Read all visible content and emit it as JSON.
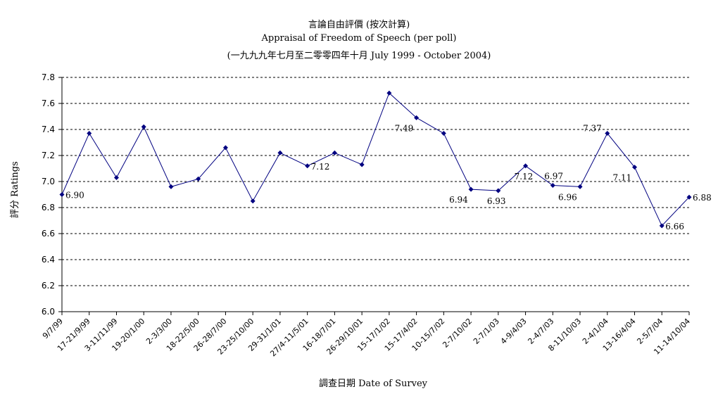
{
  "chart_data": {
    "type": "line",
    "title": "言論自由評價 (按次計算)",
    "subtitle": "Appraisal of Freedom of Speech (per poll)",
    "period": "(一九九九年七月至二零零四年十月 July 1999 - October 2004)",
    "xlabel": "調查日期 Date of Survey",
    "ylabel": "評分 Ratings",
    "ylim": [
      6.0,
      7.8
    ],
    "yticks": [
      "6.0",
      "6.2",
      "6.4",
      "6.6",
      "6.8",
      "7.0",
      "7.2",
      "7.4",
      "7.6",
      "7.8"
    ],
    "grid": "horizontal dashed",
    "line_color": "#000080",
    "categories": [
      "9/7/99",
      "17-21/9/99",
      "3-11/11/99",
      "19-20/1/00",
      "2-3/3/00",
      "18-22/5/00",
      "26-28/7/00",
      "23-25/10/00",
      "29-31/1/01",
      "27/4-11/5/01",
      "16-18/7/01",
      "26-29/10/01",
      "15-17/1/02",
      "15-17/4/02",
      "10-15/7/02",
      "2-7/10/02",
      "2-7/1/03",
      "4-9/4/03",
      "2-4/7/03",
      "8-11/10/03",
      "2-4/1/04",
      "13-16/4/04",
      "2-5/7/04",
      "11-14/10/04"
    ],
    "values": [
      6.9,
      7.37,
      7.03,
      7.42,
      6.96,
      7.02,
      7.26,
      6.85,
      7.22,
      7.12,
      7.22,
      7.13,
      7.68,
      7.49,
      7.37,
      6.94,
      6.93,
      7.12,
      6.97,
      6.96,
      7.37,
      7.11,
      6.66,
      6.88
    ],
    "data_labels": [
      {
        "index": 0,
        "text": "6.90",
        "pos": "right"
      },
      {
        "index": 9,
        "text": "7.12",
        "pos": "right"
      },
      {
        "index": 13,
        "text": "7.49",
        "pos": "below-left"
      },
      {
        "index": 15,
        "text": "6.94",
        "pos": "below-left"
      },
      {
        "index": 16,
        "text": "6.93",
        "pos": "below"
      },
      {
        "index": 17,
        "text": "7.12",
        "pos": "below"
      },
      {
        "index": 18,
        "text": "6.97",
        "pos": "above"
      },
      {
        "index": 19,
        "text": "6.96",
        "pos": "below-left"
      },
      {
        "index": 20,
        "text": "7.37",
        "pos": "left"
      },
      {
        "index": 21,
        "text": "7.11",
        "pos": "below-left"
      },
      {
        "index": 22,
        "text": "6.66",
        "pos": "right"
      },
      {
        "index": 23,
        "text": "6.88",
        "pos": "right"
      }
    ]
  }
}
